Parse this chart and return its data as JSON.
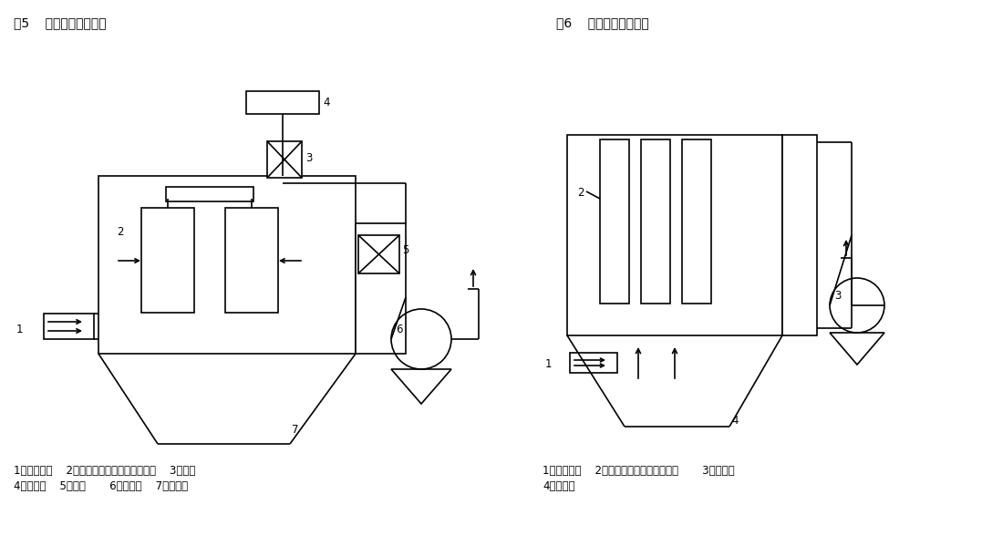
{
  "fig_title1": "图5    外制式布袋收尘器",
  "fig_title2": "图6    内制式布袋收尘器",
  "legend1_line1": "1、烟气入口    2、袋房（箭头指烟气的方向）    3、阀门",
  "legend1_line2": "4、压缩机    5、阀门       6、引风机    7、集尘器",
  "legend2_line1": "1、烟气入口    2、袋房（箭头指烟气方向）       3、引风机",
  "legend2_line2": "4、集尘器",
  "bg_color": "#ffffff",
  "line_color": "#000000",
  "fontsize_title": 10,
  "fontsize_label": 8.5
}
